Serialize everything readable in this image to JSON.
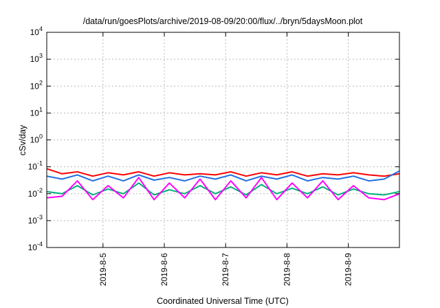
{
  "chart_data": {
    "type": "line",
    "title": "/data/run/goesPlots/archive/2019-08-09/20:00/flux/../bryn/5daysMoon.plot",
    "xlabel": "Coordinated Universal Time (UTC)",
    "ylabel": "cSv/day",
    "yscale": "log",
    "ylim": [
      0.0001,
      10000
    ],
    "xlim": [
      "2019-08-04T02:00",
      "2019-08-09T20:00"
    ],
    "grid": true,
    "legend": "none",
    "y_ticks": [
      {
        "value": 0.0001,
        "base": "10",
        "exp": "-4"
      },
      {
        "value": 0.001,
        "base": "10",
        "exp": "-3"
      },
      {
        "value": 0.01,
        "base": "10",
        "exp": "-2"
      },
      {
        "value": 0.1,
        "base": "10",
        "exp": "-1"
      },
      {
        "value": 1,
        "base": "10",
        "exp": "0"
      },
      {
        "value": 10,
        "base": "10",
        "exp": "1"
      },
      {
        "value": 100,
        "base": "10",
        "exp": "2"
      },
      {
        "value": 1000,
        "base": "10",
        "exp": "3"
      },
      {
        "value": 10000,
        "base": "10",
        "exp": "4"
      }
    ],
    "x_ticks": [
      {
        "value": "2019-08-05T00:00",
        "label": "2019-8-5"
      },
      {
        "value": "2019-08-06T00:00",
        "label": "2019-8-6"
      },
      {
        "value": "2019-08-07T00:00",
        "label": "2019-8-7"
      },
      {
        "value": "2019-08-08T00:00",
        "label": "2019-8-8"
      },
      {
        "value": "2019-08-09T00:00",
        "label": "2019-8-9"
      }
    ],
    "series": [
      {
        "color": "#ff0000",
        "x": [
          "2019-08-04T02:00",
          "2019-08-04T08:00",
          "2019-08-04T14:00",
          "2019-08-04T20:00",
          "2019-08-05T02:00",
          "2019-08-05T08:00",
          "2019-08-05T14:00",
          "2019-08-05T20:00",
          "2019-08-06T02:00",
          "2019-08-06T08:00",
          "2019-08-06T14:00",
          "2019-08-06T20:00",
          "2019-08-07T02:00",
          "2019-08-07T08:00",
          "2019-08-07T14:00",
          "2019-08-07T20:00",
          "2019-08-08T02:00",
          "2019-08-08T08:00",
          "2019-08-08T14:00",
          "2019-08-08T20:00",
          "2019-08-09T02:00",
          "2019-08-09T08:00",
          "2019-08-09T14:00",
          "2019-08-09T20:00"
        ],
        "y": [
          0.085,
          0.055,
          0.065,
          0.045,
          0.06,
          0.05,
          0.065,
          0.045,
          0.06,
          0.05,
          0.055,
          0.05,
          0.065,
          0.045,
          0.06,
          0.05,
          0.065,
          0.045,
          0.055,
          0.05,
          0.06,
          0.05,
          0.045,
          0.055
        ]
      },
      {
        "color": "#1f6fe0",
        "x": [
          "2019-08-04T02:00",
          "2019-08-04T08:00",
          "2019-08-04T14:00",
          "2019-08-04T20:00",
          "2019-08-05T02:00",
          "2019-08-05T08:00",
          "2019-08-05T14:00",
          "2019-08-05T20:00",
          "2019-08-06T02:00",
          "2019-08-06T08:00",
          "2019-08-06T14:00",
          "2019-08-06T20:00",
          "2019-08-07T02:00",
          "2019-08-07T08:00",
          "2019-08-07T14:00",
          "2019-08-07T20:00",
          "2019-08-08T02:00",
          "2019-08-08T08:00",
          "2019-08-08T14:00",
          "2019-08-08T20:00",
          "2019-08-09T02:00",
          "2019-08-09T08:00",
          "2019-08-09T14:00",
          "2019-08-09T20:00"
        ],
        "y": [
          0.045,
          0.035,
          0.05,
          0.03,
          0.045,
          0.03,
          0.05,
          0.032,
          0.04,
          0.03,
          0.045,
          0.035,
          0.05,
          0.03,
          0.045,
          0.035,
          0.05,
          0.03,
          0.04,
          0.035,
          0.045,
          0.03,
          0.035,
          0.07
        ]
      },
      {
        "color": "#00b07a",
        "x": [
          "2019-08-04T02:00",
          "2019-08-04T08:00",
          "2019-08-04T14:00",
          "2019-08-04T20:00",
          "2019-08-05T02:00",
          "2019-08-05T08:00",
          "2019-08-05T14:00",
          "2019-08-05T20:00",
          "2019-08-06T02:00",
          "2019-08-06T08:00",
          "2019-08-06T14:00",
          "2019-08-06T20:00",
          "2019-08-07T02:00",
          "2019-08-07T08:00",
          "2019-08-07T14:00",
          "2019-08-07T20:00",
          "2019-08-08T02:00",
          "2019-08-08T08:00",
          "2019-08-08T14:00",
          "2019-08-08T20:00",
          "2019-08-09T02:00",
          "2019-08-09T08:00",
          "2019-08-09T14:00",
          "2019-08-09T20:00"
        ],
        "y": [
          0.012,
          0.01,
          0.02,
          0.009,
          0.015,
          0.01,
          0.025,
          0.009,
          0.014,
          0.01,
          0.02,
          0.01,
          0.018,
          0.009,
          0.022,
          0.01,
          0.016,
          0.01,
          0.018,
          0.009,
          0.015,
          0.01,
          0.009,
          0.012
        ]
      },
      {
        "color": "#ff00ff",
        "x": [
          "2019-08-04T02:00",
          "2019-08-04T08:00",
          "2019-08-04T14:00",
          "2019-08-04T20:00",
          "2019-08-05T02:00",
          "2019-08-05T08:00",
          "2019-08-05T14:00",
          "2019-08-05T20:00",
          "2019-08-06T02:00",
          "2019-08-06T08:00",
          "2019-08-06T14:00",
          "2019-08-06T20:00",
          "2019-08-07T02:00",
          "2019-08-07T08:00",
          "2019-08-07T14:00",
          "2019-08-07T20:00",
          "2019-08-08T02:00",
          "2019-08-08T08:00",
          "2019-08-08T14:00",
          "2019-08-08T20:00",
          "2019-08-09T02:00",
          "2019-08-09T08:00",
          "2019-08-09T14:00",
          "2019-08-09T20:00"
        ],
        "y": [
          0.007,
          0.008,
          0.03,
          0.006,
          0.02,
          0.007,
          0.04,
          0.006,
          0.025,
          0.007,
          0.035,
          0.006,
          0.03,
          0.007,
          0.04,
          0.006,
          0.025,
          0.007,
          0.03,
          0.006,
          0.02,
          0.007,
          0.006,
          0.01
        ]
      }
    ]
  }
}
